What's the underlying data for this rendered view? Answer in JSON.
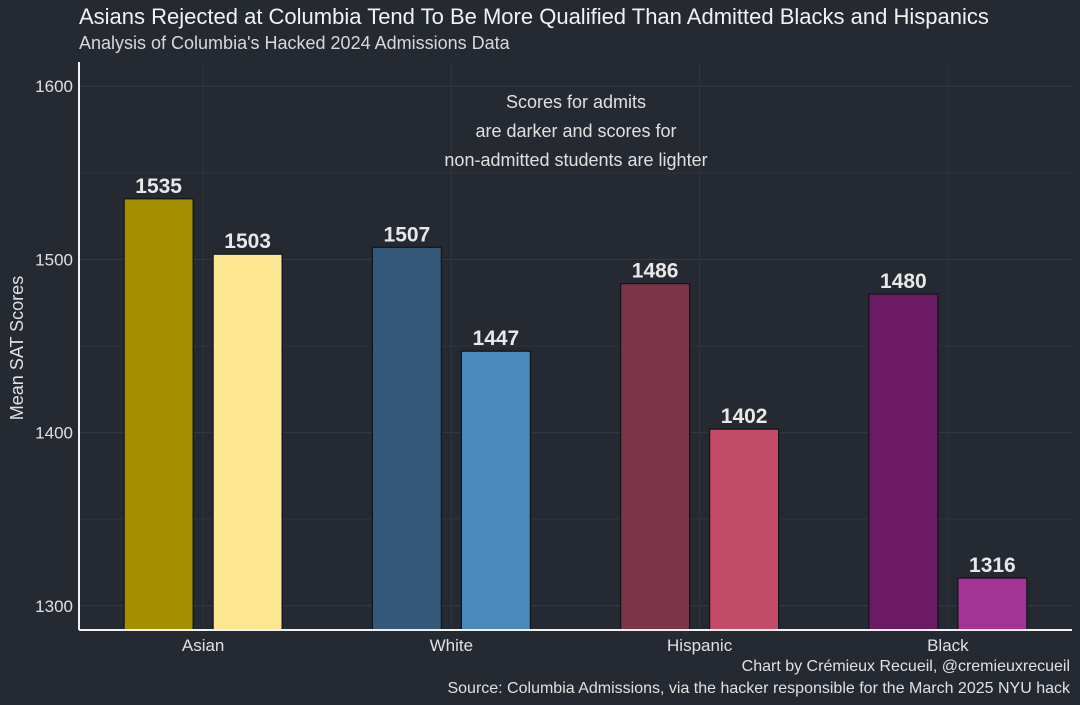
{
  "chart_data": {
    "type": "bar",
    "title": "Asians Rejected at Columbia Tend To Be More Qualified Than Admitted Blacks and Hispanics",
    "subtitle": "Analysis of Columbia's Hacked 2024 Admissions Data",
    "xlabel": "",
    "ylabel": "Mean SAT Scores",
    "ylim": [
      1286,
      1614
    ],
    "yticks": [
      1300,
      1400,
      1500,
      1600
    ],
    "categories": [
      "Asian",
      "White",
      "Hispanic",
      "Black"
    ],
    "series": [
      {
        "name": "Admitted",
        "values": [
          1535,
          1507,
          1486,
          1480
        ],
        "colors": [
          "#a58f00",
          "#33587a",
          "#7b3548",
          "#6c1a64"
        ]
      },
      {
        "name": "Not admitted",
        "values": [
          1503,
          1447,
          1402,
          1316
        ],
        "colors": [
          "#fde692",
          "#4b89bb",
          "#c24b6a",
          "#a23496"
        ]
      }
    ],
    "annotation": [
      "Scores for admits",
      "are darker and scores for",
      "non-admitted students are lighter"
    ],
    "grid": true
  },
  "credits": {
    "line1": "Chart by Crémieux Recueil, @cremieuxrecueil",
    "line2": "Source: Columbia Admissions, via the hacker responsible for the March 2025 NYU hack"
  }
}
